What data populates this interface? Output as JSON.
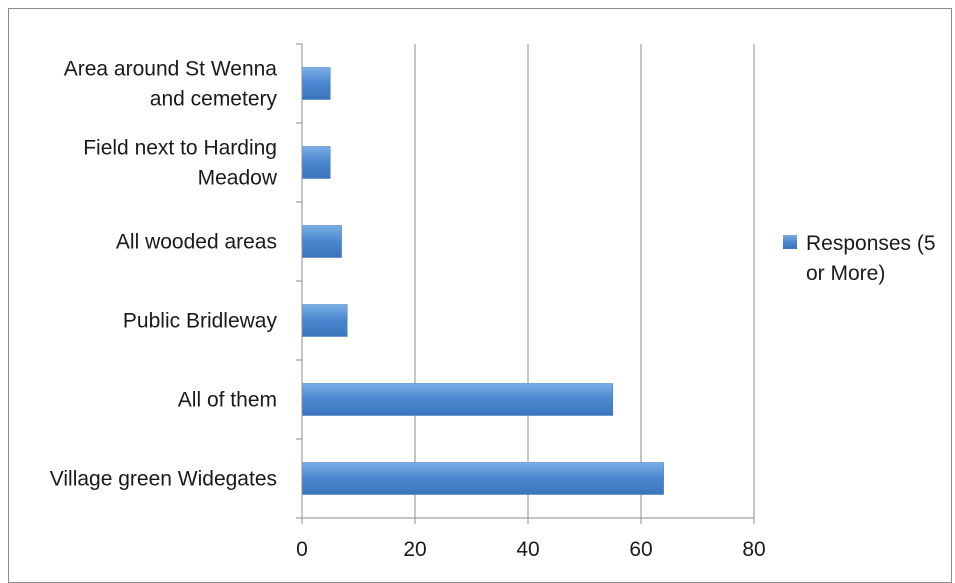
{
  "chart_data": {
    "type": "bar",
    "orientation": "horizontal",
    "categories": [
      "Area around St Wenna and cemetery",
      "Field next to Harding Meadow",
      "All wooded areas",
      "Public Bridleway",
      "All of them",
      "Village green Widegates"
    ],
    "category_label_lines": [
      [
        "Area around St Wenna",
        "and cemetery"
      ],
      [
        "Field next to Harding",
        "Meadow"
      ],
      [
        "All wooded areas"
      ],
      [
        "Public Bridleway"
      ],
      [
        "All of them"
      ],
      [
        "Village green Widegates"
      ]
    ],
    "series": [
      {
        "name": "Responses (5 or More)",
        "name_lines": [
          "Responses (5",
          "or More)"
        ],
        "values": [
          5,
          5,
          7,
          8,
          55,
          64
        ],
        "color": "#4a86cf"
      }
    ],
    "x_ticks": [
      "0",
      "20",
      "40",
      "60",
      "80"
    ],
    "xlim": [
      0,
      80
    ],
    "grid": "vertical",
    "legend": "right"
  }
}
